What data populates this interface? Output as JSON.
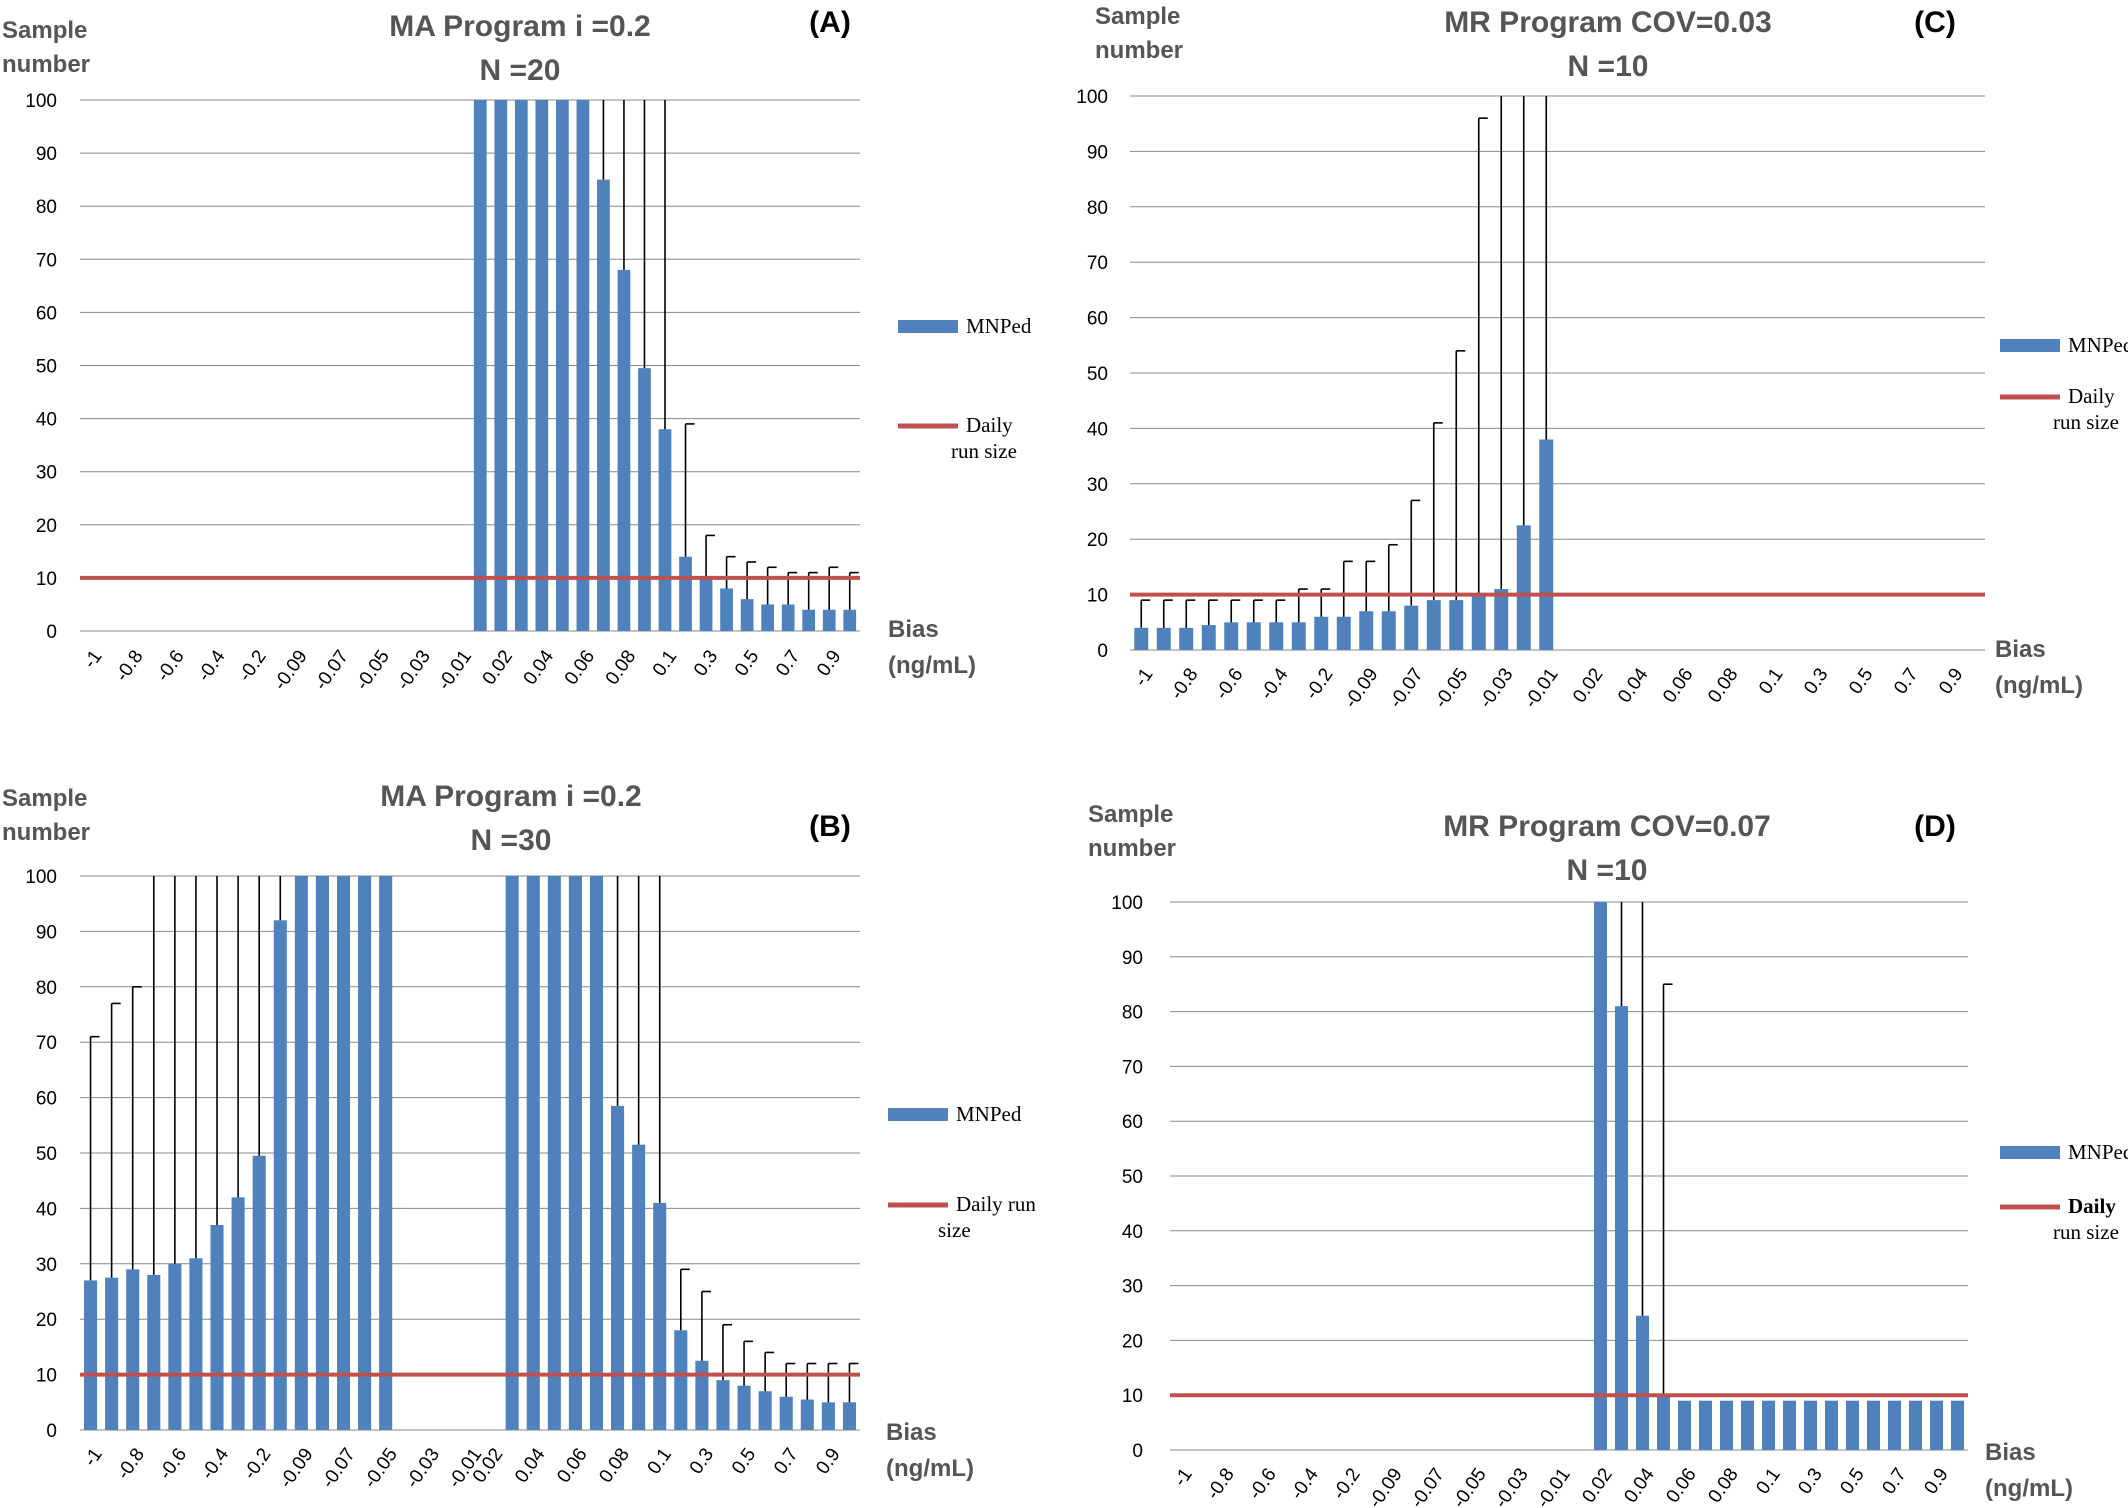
{
  "colors": {
    "bar": "#4F81BD",
    "line": "#C0504D",
    "grid": "#888888",
    "error": "#000000"
  },
  "chart_data": [
    {
      "panel": "(A)",
      "type": "bar",
      "title": "MA Program i =0.2",
      "subtitle": "N =20",
      "ylabel": [
        "Sample",
        "number"
      ],
      "xlabel": [
        "Bias",
        "(ng/mL)"
      ],
      "ylim": [
        0,
        100
      ],
      "yticks": [
        0,
        10,
        20,
        30,
        40,
        50,
        60,
        70,
        80,
        90,
        100
      ],
      "grid": true,
      "legend_position": "right",
      "categories": [
        "-1",
        "-0.9",
        "-0.8",
        "-0.7",
        "-0.6",
        "-0.5",
        "-0.4",
        "-0.3",
        "-0.2",
        "-0.1",
        "-0.09",
        "-0.08",
        "-0.07",
        "-0.06",
        "-0.05",
        "-0.04",
        "-0.03",
        "-0.02",
        "-0.01",
        "0.01",
        "0.02",
        "0.03",
        "0.04",
        "0.05",
        "0.06",
        "0.07",
        "0.08",
        "0.09",
        "0.1",
        "0.2",
        "0.3",
        "0.4",
        "0.5",
        "0.6",
        "0.7",
        "0.8",
        "0.9",
        "1"
      ],
      "tick_labels": [
        "-1",
        "-0.8",
        "-0.6",
        "-0.4",
        "-0.2",
        "-0.09",
        "-0.07",
        "-0.05",
        "-0.03",
        "-0.01",
        "0.02",
        "0.04",
        "0.06",
        "0.08",
        "0.1",
        "0.3",
        "0.5",
        "0.7",
        "0.9"
      ],
      "series": [
        {
          "name": "MNPed",
          "kind": "bar",
          "values": [
            null,
            null,
            null,
            null,
            null,
            null,
            null,
            null,
            null,
            null,
            null,
            null,
            null,
            null,
            null,
            null,
            null,
            null,
            null,
            100,
            100,
            100,
            100,
            100,
            100,
            85,
            68,
            49.5,
            38,
            14,
            10,
            8,
            6,
            5,
            5,
            4,
            4,
            4
          ],
          "error_upper": [
            null,
            null,
            null,
            null,
            null,
            null,
            null,
            null,
            null,
            null,
            null,
            null,
            null,
            null,
            null,
            null,
            null,
            null,
            null,
            null,
            null,
            null,
            null,
            null,
            null,
            100,
            100,
            100,
            100,
            39,
            18,
            14,
            13,
            12,
            11,
            11,
            12,
            11
          ]
        },
        {
          "name": "Daily run size",
          "kind": "line",
          "value": 10
        }
      ],
      "legend": [
        "MNPed",
        [
          "Daily",
          "run size"
        ]
      ]
    },
    {
      "panel": "(B)",
      "type": "bar",
      "title": "MA Program i =0.2",
      "subtitle": "N =30",
      "ylabel": [
        "Sample",
        "number"
      ],
      "xlabel": [
        "Bias",
        "(ng/mL)"
      ],
      "ylim": [
        0,
        100
      ],
      "yticks": [
        0,
        10,
        20,
        30,
        40,
        50,
        60,
        70,
        80,
        90,
        100
      ],
      "grid": true,
      "legend_position": "right",
      "categories": [
        "-1",
        "-0.9",
        "-0.8",
        "-0.7",
        "-0.6",
        "-0.5",
        "-0.4",
        "-0.3",
        "-0.2",
        "-0.1",
        "-0.09",
        "-0.08",
        "-0.07",
        "-0.06",
        "-0.05",
        "-0.04",
        "-0.03",
        "-0.02",
        "-0.01",
        "0.02",
        "0.03",
        "0.04",
        "0.05",
        "0.06",
        "0.07",
        "0.08",
        "0.09",
        "0.1",
        "0.2",
        "0.3",
        "0.4",
        "0.5",
        "0.6",
        "0.7",
        "0.8",
        "0.9",
        "1"
      ],
      "tick_labels": [
        "-1",
        "-0.8",
        "-0.6",
        "-0.4",
        "-0.2",
        "-0.09",
        "-0.07",
        "-0.05",
        "-0.03",
        "-0.01",
        "0.02",
        "0.04",
        "0.06",
        "0.08",
        "0.1",
        "0.3",
        "0.5",
        "0.7",
        "0.9"
      ],
      "tick_every": [
        0,
        2,
        4,
        6,
        8,
        10,
        12,
        14,
        16,
        18,
        19,
        21,
        23,
        25,
        27,
        29,
        31,
        33,
        35
      ],
      "series": [
        {
          "name": "MNPed",
          "kind": "bar",
          "values": [
            27,
            27.5,
            29,
            28,
            30,
            31,
            37,
            42,
            49.5,
            92,
            100,
            100,
            100,
            100,
            100,
            null,
            null,
            null,
            null,
            null,
            100,
            100,
            100,
            100,
            100,
            58.5,
            51.5,
            41,
            18,
            12.5,
            9,
            8,
            7,
            6,
            5.5,
            5,
            5
          ],
          "error_upper": [
            71,
            77,
            80,
            100,
            100,
            100,
            100,
            100,
            100,
            100,
            null,
            null,
            null,
            null,
            null,
            null,
            null,
            null,
            null,
            null,
            null,
            null,
            null,
            null,
            100,
            100,
            100,
            100,
            29,
            25,
            19,
            16,
            14,
            12,
            12,
            12,
            12
          ]
        },
        {
          "name": "Daily run size",
          "kind": "line",
          "value": 10
        }
      ],
      "legend": [
        "MNPed",
        [
          "Daily run",
          "size"
        ]
      ]
    },
    {
      "panel": "(C)",
      "type": "bar",
      "title": "MR Program COV=0.03",
      "subtitle": "N =10",
      "ylabel": [
        "Sample",
        "number"
      ],
      "xlabel": [
        "Bias",
        "(ng/mL)"
      ],
      "ylim": [
        0,
        100
      ],
      "yticks": [
        0,
        10,
        20,
        30,
        40,
        50,
        60,
        70,
        80,
        90,
        100
      ],
      "grid": true,
      "legend_position": "right",
      "categories": [
        "-1",
        "-0.9",
        "-0.8",
        "-0.7",
        "-0.6",
        "-0.5",
        "-0.4",
        "-0.3",
        "-0.2",
        "-0.1",
        "-0.09",
        "-0.08",
        "-0.07",
        "-0.06",
        "-0.05",
        "-0.04",
        "-0.03",
        "-0.02",
        "-0.01",
        "0.01",
        "0.02",
        "0.03",
        "0.04",
        "0.05",
        "0.06",
        "0.07",
        "0.08",
        "0.09",
        "0.1",
        "0.2",
        "0.3",
        "0.4",
        "0.5",
        "0.6",
        "0.7",
        "0.8",
        "0.9",
        "1"
      ],
      "tick_labels": [
        "-1",
        "-0.8",
        "-0.6",
        "-0.4",
        "-0.2",
        "-0.09",
        "-0.07",
        "-0.05",
        "-0.03",
        "-0.01",
        "0.02",
        "0.04",
        "0.06",
        "0.08",
        "0.1",
        "0.3",
        "0.5",
        "0.7",
        "0.9"
      ],
      "series": [
        {
          "name": "MNPed",
          "kind": "bar",
          "values": [
            4,
            4,
            4,
            4.5,
            5,
            5,
            5,
            5,
            6,
            6,
            7,
            7,
            8,
            9,
            9,
            10,
            11,
            22.5,
            38,
            null,
            null,
            null,
            null,
            null,
            null,
            null,
            null,
            null,
            null,
            null,
            null,
            null,
            null,
            null,
            null,
            null,
            null,
            null
          ],
          "error_upper": [
            9,
            9,
            9,
            9,
            9,
            9,
            9,
            11,
            11,
            16,
            16,
            19,
            27,
            41,
            54,
            96,
            100,
            100,
            100,
            null,
            null,
            null,
            null,
            null,
            null,
            null,
            null,
            null,
            null,
            null,
            null,
            null,
            null,
            null,
            null,
            null,
            null,
            null
          ]
        },
        {
          "name": "Daily run size",
          "kind": "line",
          "value": 10
        }
      ],
      "legend": [
        "MNPed",
        [
          "Daily",
          "run size"
        ]
      ]
    },
    {
      "panel": "(D)",
      "type": "bar",
      "title": "MR Program COV=0.07",
      "subtitle": "N =10",
      "ylabel": [
        "Sample",
        "number"
      ],
      "xlabel": [
        "Bias",
        "(ng/mL)"
      ],
      "ylim": [
        0,
        100
      ],
      "yticks": [
        0,
        10,
        20,
        30,
        40,
        50,
        60,
        70,
        80,
        90,
        100
      ],
      "grid": true,
      "legend_position": "right",
      "categories": [
        "-1",
        "-0.9",
        "-0.8",
        "-0.7",
        "-0.6",
        "-0.5",
        "-0.4",
        "-0.3",
        "-0.2",
        "-0.1",
        "-0.09",
        "-0.08",
        "-0.07",
        "-0.06",
        "-0.05",
        "-0.04",
        "-0.03",
        "-0.02",
        "-0.01",
        "0.01",
        "0.02",
        "0.03",
        "0.04",
        "0.05",
        "0.06",
        "0.07",
        "0.08",
        "0.09",
        "0.1",
        "0.2",
        "0.3",
        "0.4",
        "0.5",
        "0.6",
        "0.7",
        "0.8",
        "0.9",
        "1"
      ],
      "tick_labels": [
        "-1",
        "-0.8",
        "-0.6",
        "-0.4",
        "-0.2",
        "-0.09",
        "-0.07",
        "-0.05",
        "-0.03",
        "-0.01",
        "0.02",
        "0.04",
        "0.06",
        "0.08",
        "0.1",
        "0.3",
        "0.5",
        "0.7",
        "0.9"
      ],
      "series": [
        {
          "name": "MNPed",
          "kind": "bar",
          "values": [
            null,
            null,
            null,
            null,
            null,
            null,
            null,
            null,
            null,
            null,
            null,
            null,
            null,
            null,
            null,
            null,
            null,
            null,
            null,
            null,
            100,
            81,
            24.5,
            10,
            9,
            9,
            9,
            9,
            9,
            9,
            9,
            9,
            9,
            9,
            9,
            9,
            9,
            9
          ],
          "error_upper": [
            null,
            null,
            null,
            null,
            null,
            null,
            null,
            null,
            null,
            null,
            null,
            null,
            null,
            null,
            null,
            null,
            null,
            null,
            null,
            null,
            null,
            100,
            100,
            85,
            null,
            null,
            null,
            null,
            null,
            null,
            null,
            null,
            null,
            null,
            null,
            null,
            null,
            null
          ]
        },
        {
          "name": "Daily run size",
          "kind": "line",
          "value": 10
        }
      ],
      "legend": [
        "MNPed",
        [
          "Daily",
          "run size"
        ]
      ]
    }
  ]
}
